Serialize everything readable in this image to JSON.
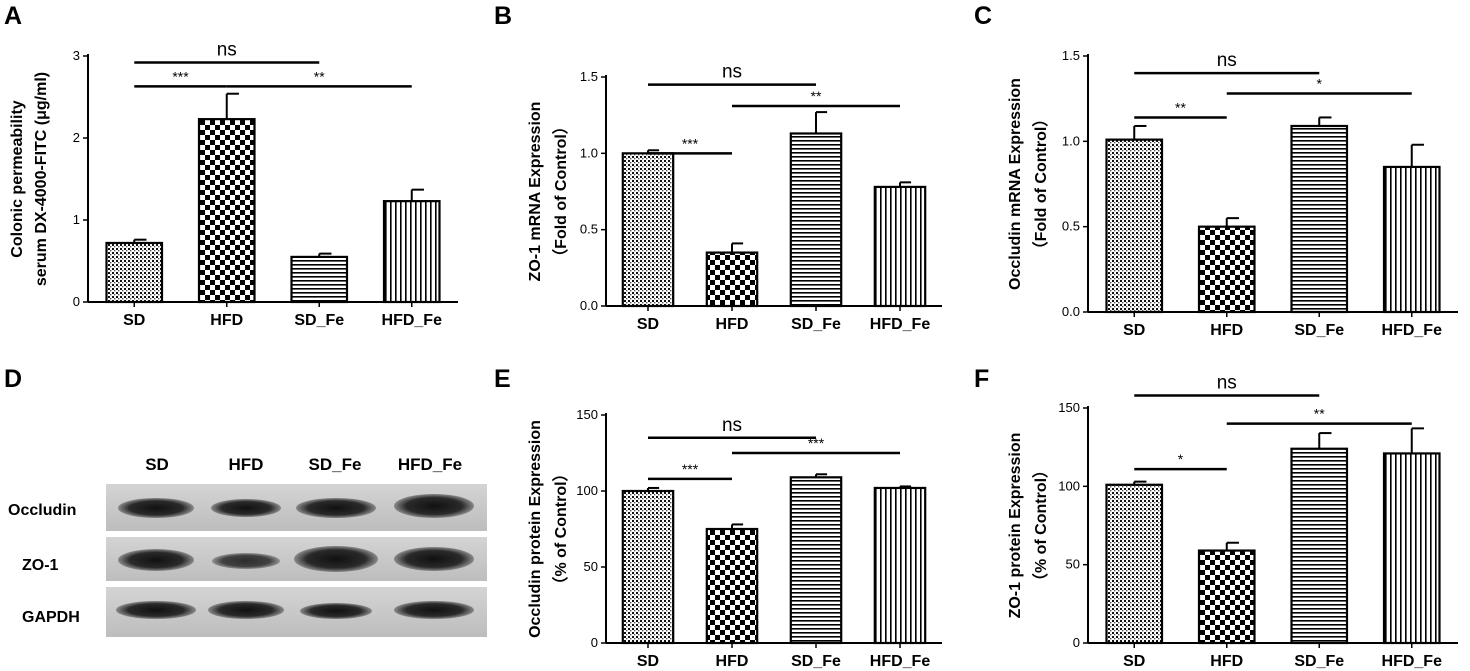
{
  "panel_labels": [
    "A",
    "B",
    "C",
    "D",
    "E",
    "F"
  ],
  "blot": {
    "lanes": [
      "SD",
      "HFD",
      "SD_Fe",
      "HFD_Fe"
    ],
    "rows": [
      "Occludin",
      "ZO-1",
      "GAPDH"
    ]
  },
  "chart_data": [
    {
      "panel": "A",
      "type": "bar",
      "categories": [
        "SD",
        "HFD",
        "SD_Fe",
        "HFD_Fe"
      ],
      "values": [
        0.72,
        2.23,
        0.55,
        1.23
      ],
      "errors": [
        0.04,
        0.31,
        0.04,
        0.14
      ],
      "patterns": [
        "dots",
        "checker",
        "hlines",
        "vlines"
      ],
      "ylabel_lines": [
        "Colonic permeability",
        "serum DX-4000-FITC (μg/ml)"
      ],
      "ylim": [
        0,
        3
      ],
      "yticks": [
        0,
        1,
        2,
        3
      ],
      "tick_labels": [
        "0",
        "1",
        "2",
        "3"
      ],
      "comparisons": [
        {
          "from": 0,
          "to": 2,
          "label": "ns",
          "y": 2.92
        },
        {
          "from": 0,
          "to": 1,
          "label": "***",
          "y": 2.63
        },
        {
          "from": 1,
          "to": 3,
          "label": "**",
          "y": 2.63
        }
      ]
    },
    {
      "panel": "B",
      "type": "bar",
      "categories": [
        "SD",
        "HFD",
        "SD_Fe",
        "HFD_Fe"
      ],
      "values": [
        1.0,
        0.35,
        1.13,
        0.78
      ],
      "errors": [
        0.02,
        0.06,
        0.14,
        0.03
      ],
      "patterns": [
        "dots",
        "checker",
        "hlines",
        "vlines"
      ],
      "ylabel_lines": [
        "ZO-1 mRNA Expression",
        "（Fold of Control）"
      ],
      "ylim": [
        0,
        1.5
      ],
      "yticks": [
        0,
        0.5,
        1.0,
        1.5
      ],
      "tick_labels": [
        "0.0",
        "0.5",
        "1.0",
        "1.5"
      ],
      "comparisons": [
        {
          "from": 0,
          "to": 2,
          "label": "ns",
          "y": 1.45
        },
        {
          "from": 0,
          "to": 1,
          "label": "***",
          "y": 1.0
        },
        {
          "from": 1,
          "to": 3,
          "label": "**",
          "y": 1.31
        }
      ]
    },
    {
      "panel": "C",
      "type": "bar",
      "categories": [
        "SD",
        "HFD",
        "SD_Fe",
        "HFD_Fe"
      ],
      "values": [
        1.01,
        0.5,
        1.09,
        0.85
      ],
      "errors": [
        0.08,
        0.05,
        0.05,
        0.13
      ],
      "patterns": [
        "dots",
        "checker",
        "hlines",
        "vlines"
      ],
      "ylabel_lines": [
        "Occludin mRNA Expression",
        "（Fold of Control）"
      ],
      "ylim": [
        0,
        1.5
      ],
      "yticks": [
        0,
        0.5,
        1.0,
        1.5
      ],
      "tick_labels": [
        "0.0",
        "0.5",
        "1.0",
        "1.5"
      ],
      "comparisons": [
        {
          "from": 0,
          "to": 2,
          "label": "ns",
          "y": 1.4
        },
        {
          "from": 0,
          "to": 1,
          "label": "**",
          "y": 1.14
        },
        {
          "from": 1,
          "to": 3,
          "label": "*",
          "y": 1.28
        }
      ]
    },
    {
      "panel": "E",
      "type": "bar",
      "categories": [
        "SD",
        "HFD",
        "SD_Fe",
        "HFD_Fe"
      ],
      "values": [
        100,
        75,
        109,
        102
      ],
      "errors": [
        2,
        3,
        2,
        1
      ],
      "patterns": [
        "dots",
        "checker",
        "hlines",
        "vlines"
      ],
      "ylabel_lines": [
        "Occludin protein Expression",
        "（% of Control）"
      ],
      "ylim": [
        0,
        150
      ],
      "yticks": [
        0,
        50,
        100,
        150
      ],
      "tick_labels": [
        "0",
        "50",
        "100",
        "150"
      ],
      "comparisons": [
        {
          "from": 0,
          "to": 2,
          "label": "ns",
          "y": 135
        },
        {
          "from": 0,
          "to": 1,
          "label": "***",
          "y": 108
        },
        {
          "from": 1,
          "to": 3,
          "label": "***",
          "y": 125
        }
      ]
    },
    {
      "panel": "F",
      "type": "bar",
      "categories": [
        "SD",
        "HFD",
        "SD_Fe",
        "HFD_Fe"
      ],
      "values": [
        101,
        59,
        124,
        121
      ],
      "errors": [
        2,
        5,
        10,
        16
      ],
      "patterns": [
        "dots",
        "checker",
        "hlines",
        "vlines"
      ],
      "ylabel_lines": [
        "ZO-1 protein Expression",
        "（% of Control）"
      ],
      "ylim": [
        0,
        150
      ],
      "yticks": [
        0,
        50,
        100,
        150
      ],
      "tick_labels": [
        "0",
        "50",
        "100",
        "150"
      ],
      "comparisons": [
        {
          "from": 0,
          "to": 2,
          "label": "ns",
          "y": 158
        },
        {
          "from": 0,
          "to": 1,
          "label": "*",
          "y": 111
        },
        {
          "from": 1,
          "to": 3,
          "label": "**",
          "y": 140
        }
      ]
    }
  ]
}
